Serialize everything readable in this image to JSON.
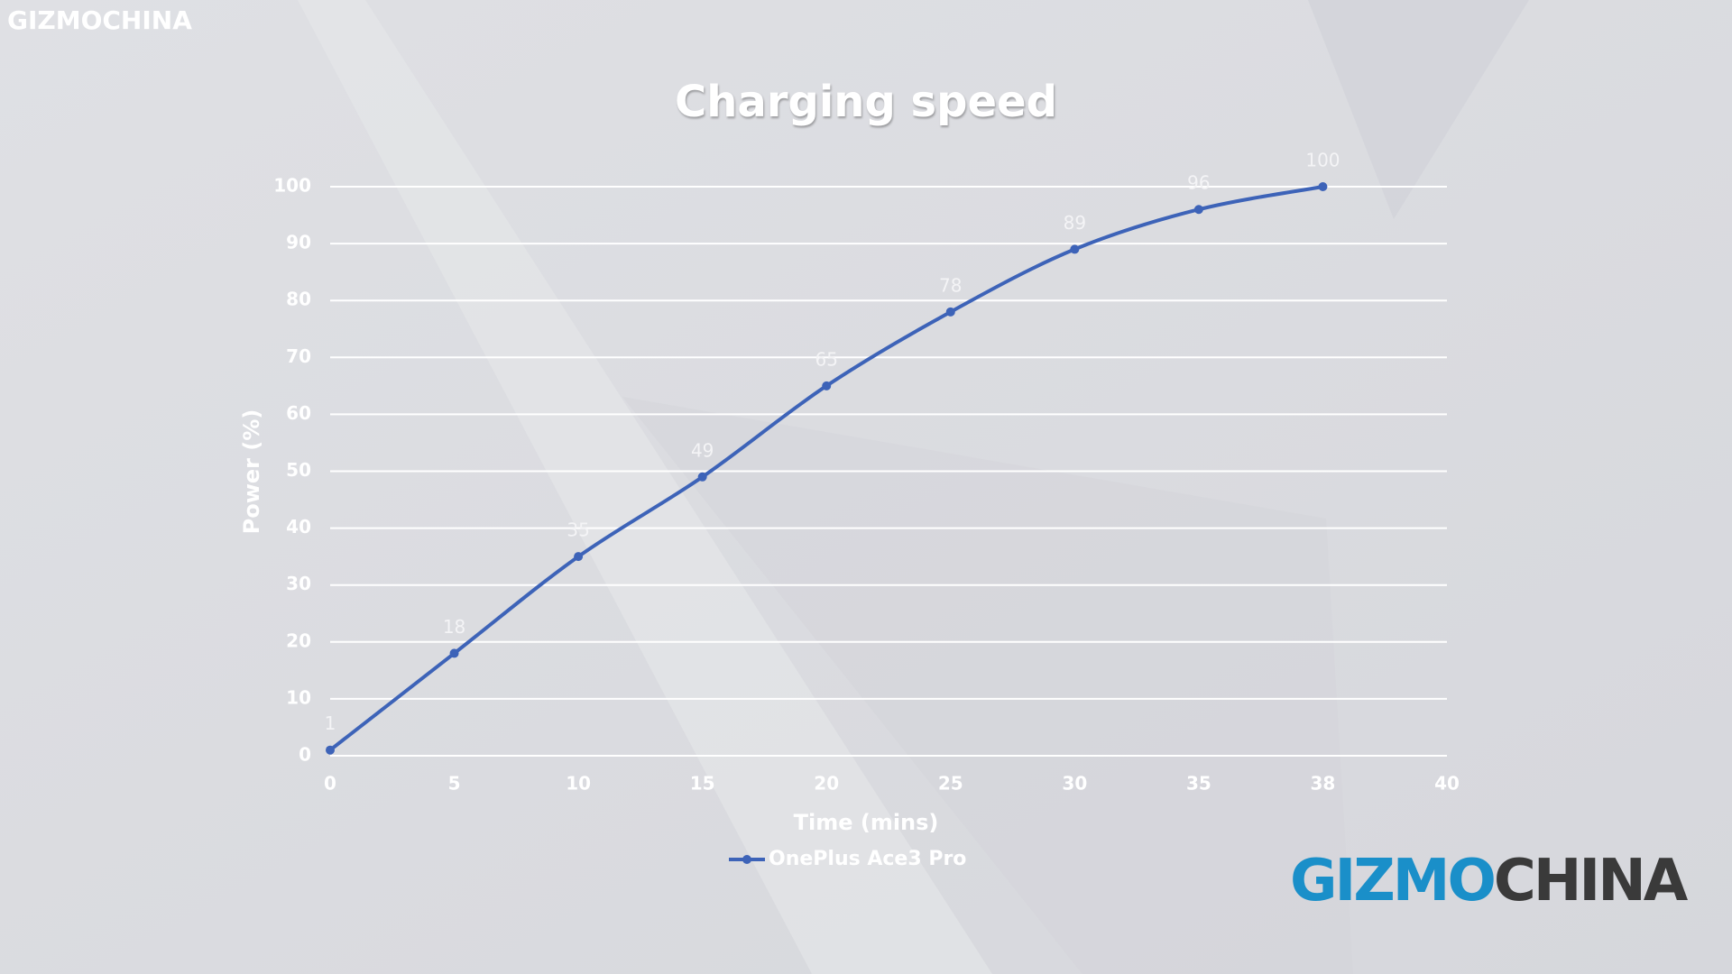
{
  "watermark": "GIZMOCHINA",
  "logo": {
    "part1": "GIZMO",
    "part2": "CHINA"
  },
  "chart_data": {
    "type": "line",
    "title": "Charging speed",
    "x_label": "Time (mins)",
    "y_label": "Power (%)",
    "categories": [
      0,
      5,
      10,
      15,
      20,
      25,
      30,
      35,
      38,
      40
    ],
    "series": [
      {
        "name": "OnePlus Ace3 Pro",
        "color": "#3d63b8",
        "values": [
          1,
          18,
          35,
          49,
          65,
          78,
          89,
          96,
          100,
          null
        ]
      }
    ],
    "ylim": [
      0,
      100
    ],
    "yticks": [
      0,
      10,
      20,
      30,
      40,
      50,
      60,
      70,
      80,
      90,
      100
    ],
    "grid": true,
    "legend": "bottom"
  }
}
